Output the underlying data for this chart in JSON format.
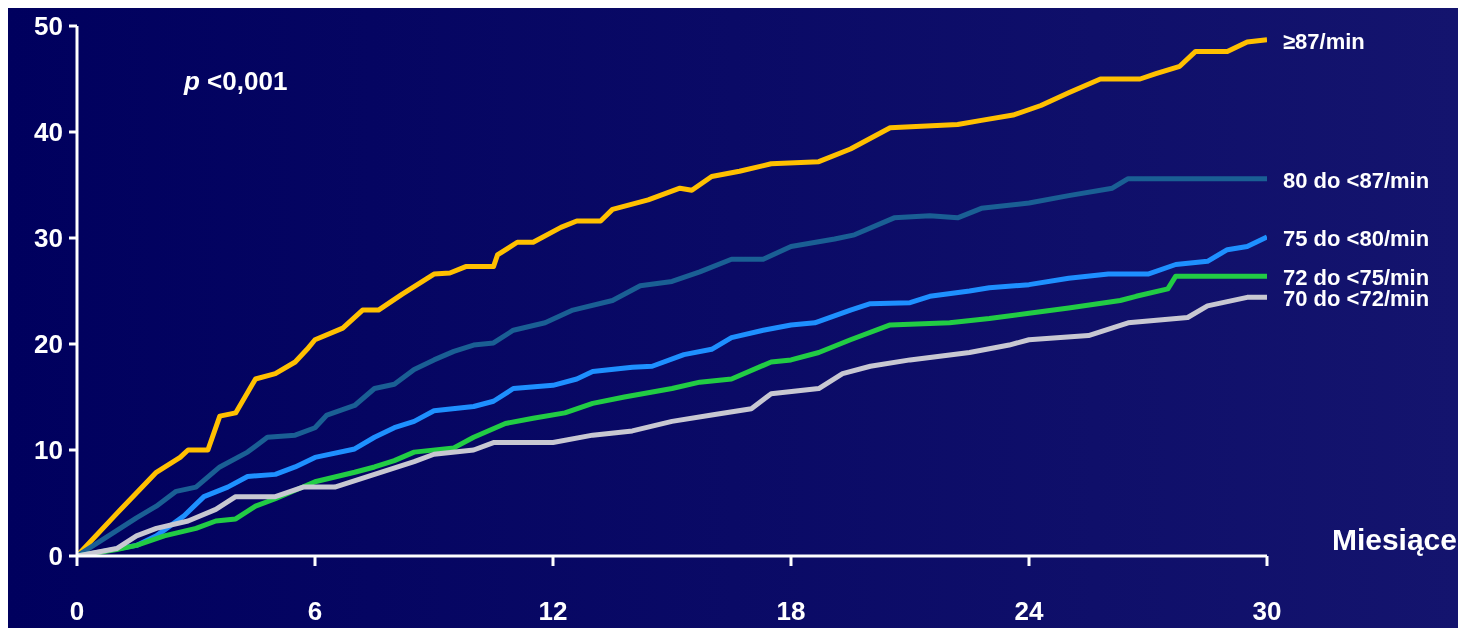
{
  "chart_data": {
    "type": "line",
    "xlabel": "Miesiące",
    "annotations": [
      "p <0,001"
    ],
    "xlim": [
      0,
      30
    ],
    "xticks": [
      0,
      6,
      12,
      18,
      24,
      30
    ],
    "ylim": [
      0,
      50
    ],
    "yticks": [
      0,
      10,
      20,
      30,
      40,
      50
    ],
    "grid": false,
    "legend": false,
    "marker": "none",
    "line_style": "solid",
    "series": [
      {
        "name": "≥87/min",
        "color": "#ffc000",
        "x": [
          0,
          1,
          2,
          2.6,
          2.8,
          3.3,
          3.6,
          4,
          4.5,
          5,
          5.5,
          5.8,
          6,
          6.7,
          7.2,
          7.6,
          8.2,
          9,
          9.4,
          9.8,
          10.5,
          10.6,
          11.1,
          11.5,
          12.2,
          12.6,
          13.2,
          13.5,
          14.4,
          15.2,
          15.5,
          16,
          16.7,
          17.5,
          18.7,
          19.5,
          20.5,
          22.2,
          22.8,
          23.6,
          24.3,
          25,
          25.8,
          26.8,
          27.2,
          27.8,
          28.2,
          29,
          29.5,
          30
        ],
        "values": [
          0,
          4,
          7.9,
          9.3,
          10,
          10,
          13.2,
          13.5,
          16.7,
          17.2,
          18.3,
          19.5,
          20.4,
          21.5,
          23.2,
          23.2,
          24.7,
          26.6,
          26.7,
          27.3,
          27.3,
          28.4,
          29.6,
          29.6,
          31,
          31.6,
          31.6,
          32.7,
          33.6,
          34.7,
          34.5,
          35.8,
          36.3,
          37,
          37.2,
          38.4,
          40.4,
          40.7,
          41.1,
          41.6,
          42.5,
          43.7,
          45,
          45,
          45.5,
          46.2,
          47.6,
          47.6,
          48.5,
          48.7
        ]
      },
      {
        "name": "80 do <87/min",
        "color": "#1a5f94",
        "x": [
          0,
          1,
          1.5,
          2,
          2.5,
          3,
          3.6,
          4.3,
          4.8,
          5.5,
          6,
          6.3,
          7,
          7.5,
          8,
          8.5,
          9,
          9.5,
          10,
          10.5,
          11,
          11.8,
          12.5,
          13.5,
          14.2,
          15,
          15.7,
          16.5,
          17.3,
          18,
          19.1,
          19.6,
          20.6,
          21.5,
          22.2,
          22.8,
          24,
          25,
          26.1,
          26.5,
          30
        ],
        "values": [
          0,
          2.4,
          3.6,
          4.7,
          6.1,
          6.5,
          8.4,
          9.8,
          11.2,
          11.4,
          12.1,
          13.3,
          14.2,
          15.8,
          16.2,
          17.6,
          18.5,
          19.3,
          19.9,
          20.1,
          21.3,
          22,
          23.2,
          24.1,
          25.5,
          25.9,
          26.8,
          28,
          28,
          29.2,
          29.9,
          30.3,
          31.9,
          32.1,
          31.9,
          32.8,
          33.3,
          34,
          34.7,
          35.6,
          35.6
        ]
      },
      {
        "name": "75 do <80/min",
        "color": "#1e90ff",
        "x": [
          0,
          1,
          1.5,
          2,
          2.7,
          3.2,
          3.8,
          4.3,
          5,
          5.5,
          6,
          7,
          7.5,
          8,
          8.5,
          9,
          10,
          10.5,
          11,
          12,
          12.6,
          13,
          14,
          14.5,
          15.3,
          16,
          16.5,
          17.3,
          18,
          18.6,
          19.5,
          20,
          21,
          21.5,
          22.5,
          23,
          24,
          25,
          26,
          27,
          27.7,
          28.5,
          29,
          29.5,
          30
        ],
        "values": [
          0,
          null,
          1,
          1.9,
          3.8,
          5.6,
          6.5,
          7.5,
          7.7,
          8.4,
          9.3,
          10.1,
          11.2,
          12.1,
          12.7,
          13.7,
          14.1,
          14.6,
          15.8,
          16.1,
          16.7,
          17.4,
          17.8,
          17.9,
          19,
          19.5,
          20.6,
          21.3,
          21.8,
          22,
          23.2,
          23.8,
          23.9,
          24.5,
          25,
          25.3,
          25.6,
          26.2,
          26.6,
          26.6,
          27.5,
          27.8,
          28.9,
          29.2,
          30.1
        ]
      },
      {
        "name": "72 do <75/min",
        "color": "#22cc44",
        "x": [
          0,
          1,
          1.5,
          2.2,
          3,
          3.5,
          4,
          4.5,
          5,
          6,
          7,
          7.5,
          8,
          8.5,
          9.5,
          10,
          10.8,
          11.5,
          12.3,
          13,
          13.8,
          15,
          15.7,
          16.5,
          17.5,
          18,
          18.7,
          19.5,
          20.5,
          22,
          23,
          24,
          25,
          26.3,
          26.7,
          27.5,
          27.7,
          30
        ],
        "values": [
          0,
          0.6,
          1,
          1.9,
          2.6,
          3.3,
          3.5,
          4.7,
          5.4,
          7,
          7.9,
          8.4,
          9,
          9.8,
          10.2,
          11.2,
          12.5,
          13,
          13.5,
          14.4,
          15,
          15.8,
          16.4,
          16.7,
          18.3,
          18.5,
          19.2,
          20.4,
          21.8,
          22,
          22.4,
          22.9,
          23.4,
          24.1,
          24.5,
          25.2,
          26.4,
          26.4
        ]
      },
      {
        "name": "70 do <72/min",
        "color": "#c8c8d2",
        "x": [
          0,
          1,
          1.5,
          2,
          2.8,
          3.5,
          4,
          5,
          5.7,
          6.5,
          7.5,
          8.5,
          9,
          10,
          10.5,
          12,
          13,
          14,
          15,
          16,
          17,
          17.5,
          18.7,
          19.3,
          20,
          21,
          22.5,
          23.5,
          24,
          25.5,
          26.5,
          28,
          28.5,
          29.5,
          30
        ],
        "values": [
          0,
          0.7,
          1.9,
          2.6,
          3.3,
          4.4,
          5.6,
          5.6,
          6.5,
          6.5,
          7.7,
          8.9,
          9.6,
          10,
          10.7,
          10.7,
          11.4,
          11.8,
          12.7,
          13.3,
          13.9,
          15.3,
          15.8,
          17.2,
          17.9,
          18.5,
          19.2,
          19.9,
          20.4,
          20.8,
          22,
          22.5,
          23.6,
          24.4,
          24.4
        ]
      }
    ]
  }
}
